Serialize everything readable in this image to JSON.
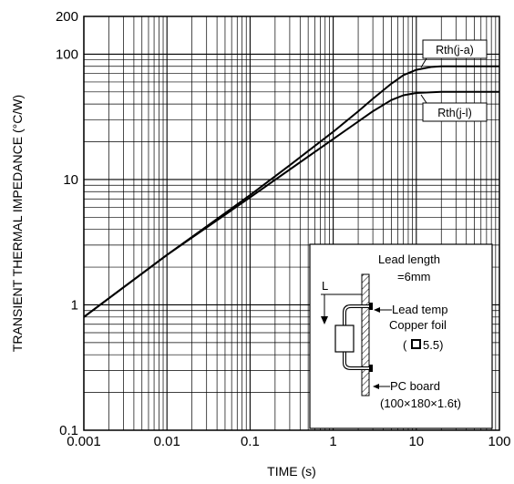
{
  "chart_data": {
    "type": "line",
    "title": "",
    "xlabel": "TIME (s)",
    "ylabel": "TRANSIENT THERMAL IMPEDANCE (°C/W)",
    "xscale": "log",
    "yscale": "log",
    "xlim": [
      0.001,
      100
    ],
    "ylim": [
      0.1,
      200
    ],
    "grid": true,
    "x_ticks": [
      "0.001",
      "0.01",
      "0.1",
      "1",
      "10",
      "100"
    ],
    "y_ticks": [
      "0.1",
      "1",
      "10",
      "100",
      "200"
    ],
    "series": [
      {
        "name": "Rth(j-a)",
        "x": [
          0.001,
          0.01,
          0.1,
          0.3,
          1,
          2,
          3,
          5,
          7,
          10,
          15,
          20,
          50,
          100
        ],
        "y": [
          0.8,
          2.5,
          7.5,
          13,
          24,
          35,
          44,
          58,
          68,
          75,
          79,
          80,
          80,
          80
        ]
      },
      {
        "name": "Rth(j-l)",
        "x": [
          0.001,
          0.01,
          0.1,
          0.3,
          1,
          2,
          3,
          5,
          7,
          10,
          20,
          100
        ],
        "y": [
          0.8,
          2.5,
          7.2,
          12,
          21,
          29,
          35,
          43,
          47,
          49,
          50,
          50
        ]
      }
    ]
  },
  "inset": {
    "lead_length": "Lead length",
    "lead_length_value": "=6mm",
    "dim_label": "L",
    "lead_temp": "Lead temp",
    "copper_foil": "Copper foil",
    "foil_size_open": "(",
    "foil_size_value": "5.5)",
    "pc_board": "PC board",
    "pc_board_size": "(100×180×1.6t)"
  }
}
